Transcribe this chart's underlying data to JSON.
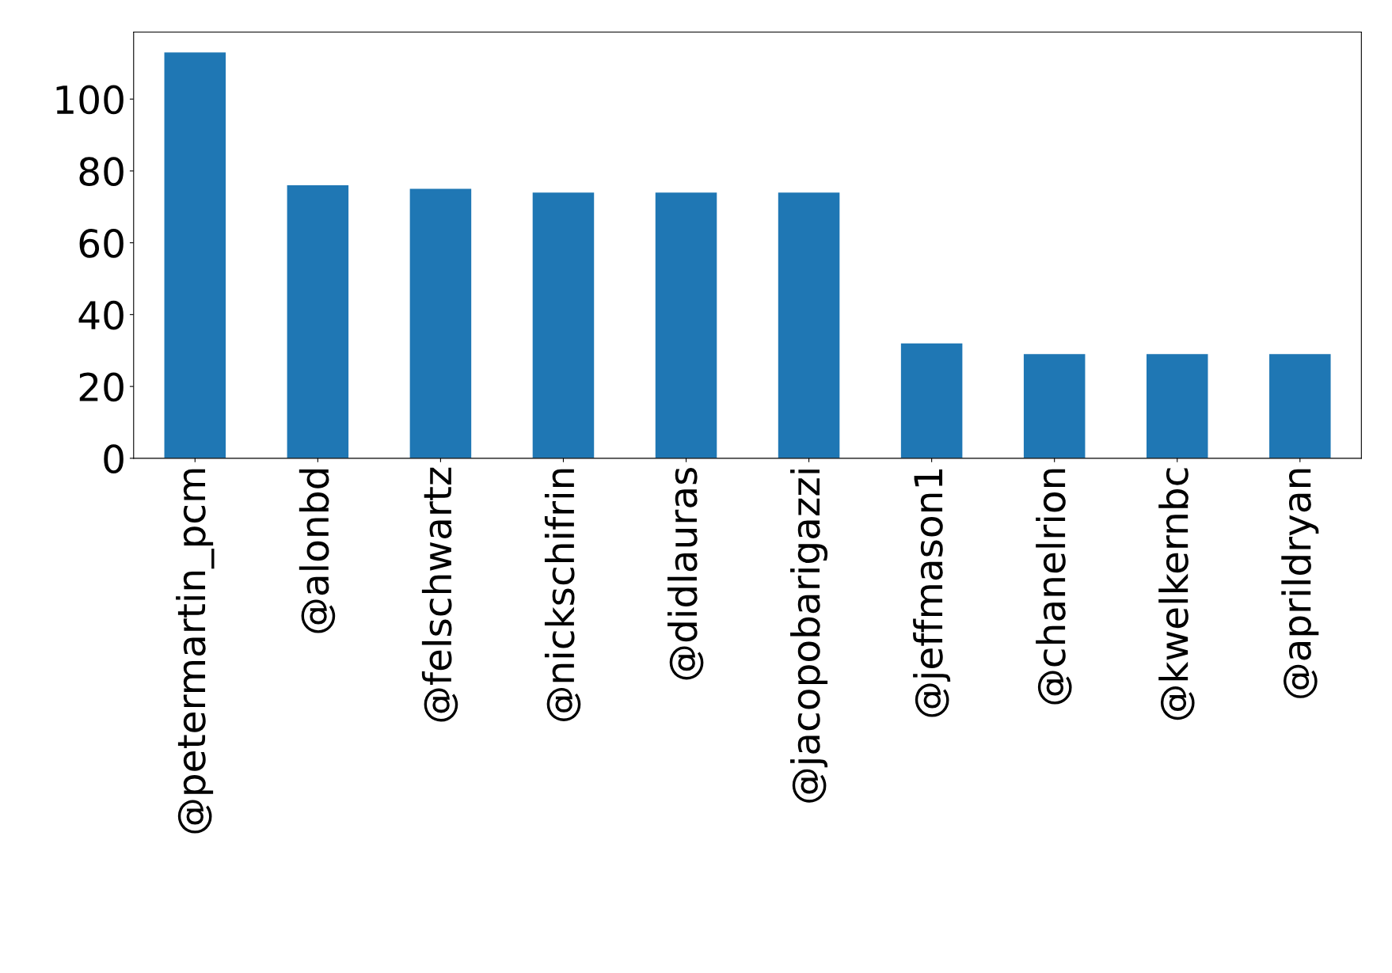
{
  "chart_data": {
    "type": "bar",
    "categories": [
      "@petermartin_pcm",
      "@alonbd",
      "@felschwartz",
      "@nickschifrin",
      "@didlauras",
      "@jacopobarigazzi",
      "@jeffmason1",
      "@chanelrion",
      "@kwelkernbc",
      "@aprildryan"
    ],
    "values": [
      113,
      76,
      75,
      74,
      74,
      74,
      32,
      29,
      29,
      29
    ],
    "color": "#1f77b4",
    "ylim": [
      0,
      118.65
    ],
    "yticks": [
      0,
      20,
      40,
      60,
      80,
      100
    ],
    "grid": false,
    "legend": false
  }
}
